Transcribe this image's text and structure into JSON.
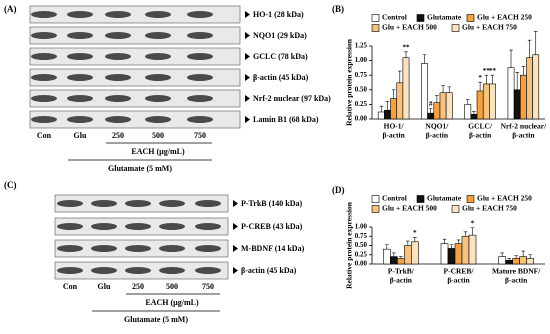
{
  "blots_a": {
    "label": "(A)",
    "rows": [
      "HO-1 (28 kDa)",
      "NQO1 (29 kDa)",
      "GCLC (78 kDa)",
      "β-actin (45 kDa)",
      "Nrf-2 nuclear (97 kDa)",
      "Lamin B1 (68 kDa)"
    ],
    "lanes": [
      "Con",
      "Glu",
      "250",
      "500",
      "750"
    ],
    "treatment": "EACH (µg/mL)",
    "base": "Glutamate (5 mM)"
  },
  "blots_c": {
    "label": "(C)",
    "rows": [
      "P-TrkB (140 kDa)",
      "P-CREB (43 kDa)",
      "M-BDNF (14 kDa)",
      "β-actin (45 kDa)"
    ],
    "lanes": [
      "Con",
      "Glu",
      "250",
      "500",
      "750"
    ],
    "treatment": "EACH (µg/mL)",
    "base": "Glutamate (5 mM)"
  },
  "chart_data": [
    {
      "type": "bar",
      "panel": "(B)",
      "y_label": "Relative protein expression",
      "categories": [
        [
          "HO-1/",
          "β-actin"
        ],
        [
          "NQO1/",
          "β-actin"
        ],
        [
          "GCLC/",
          "β-actin"
        ],
        [
          "Nrf-2 nuclear/",
          "β-actin"
        ]
      ],
      "ylim": [
        0,
        1.25
      ],
      "yticks": [
        {
          "value": 0,
          "label": "0.00"
        },
        {
          "value": 0.25,
          "label": "0.25"
        },
        {
          "value": 0.5,
          "label": "0.50"
        },
        {
          "value": 0.75,
          "label": "0.75"
        },
        {
          "value": 1,
          "label": "1.00"
        },
        {
          "value": 1.25,
          "label": "1.25"
        }
      ],
      "series": [
        {
          "name": "Control",
          "color": "#ffffff",
          "values": [
            0.12,
            0.95,
            0.25,
            0.88
          ],
          "errors": [
            0.1,
            0.15,
            0.08,
            0.3
          ],
          "significance": [
            null,
            null,
            null,
            null
          ]
        },
        {
          "name": "Glutamate",
          "color": "#111111",
          "values": [
            0.15,
            0.1,
            0.08,
            0.5
          ],
          "errors": [
            0.15,
            0.08,
            0.05,
            0.3
          ],
          "significance": [
            null,
            "#",
            null,
            null
          ]
        },
        {
          "name": "Glu + EACH 250",
          "color": "#f5a041",
          "values": [
            0.35,
            0.28,
            0.48,
            0.75
          ],
          "errors": [
            0.15,
            0.12,
            0.15,
            0.15
          ],
          "significance": [
            null,
            null,
            "*",
            null
          ]
        },
        {
          "name": "Glu + EACH 500",
          "color": "#f7c27f",
          "values": [
            0.62,
            0.45,
            0.6,
            1.05
          ],
          "errors": [
            0.2,
            0.12,
            0.15,
            0.3
          ],
          "significance": [
            null,
            null,
            "**",
            null
          ]
        },
        {
          "name": "Glu + EACH 750",
          "color": "#fbe3c0",
          "values": [
            1.05,
            0.45,
            0.6,
            1.1
          ],
          "errors": [
            0.1,
            0.1,
            0.15,
            0.4
          ],
          "significance": [
            "**",
            null,
            "**",
            null
          ]
        }
      ]
    },
    {
      "type": "bar",
      "panel": "(D)",
      "y_label": "Relative protein expression",
      "categories": [
        [
          "P-TrkB/",
          "β-actin"
        ],
        [
          "P-CREB/",
          "β-actin"
        ],
        [
          "Mature BDNF/",
          "β-actin"
        ]
      ],
      "ylim": [
        0,
        1
      ],
      "yticks": [
        {
          "value": 0,
          "label": "0.00"
        },
        {
          "value": 0.25,
          "label": "0.25"
        },
        {
          "value": 0.5,
          "label": "0.50"
        },
        {
          "value": 0.75,
          "label": "0.75"
        },
        {
          "value": 1,
          "label": "1.00"
        }
      ],
      "series": [
        {
          "name": "Control",
          "color": "#ffffff",
          "values": [
            0.4,
            0.55,
            0.2
          ],
          "errors": [
            0.12,
            0.12,
            0.1
          ],
          "significance": [
            null,
            null,
            null
          ]
        },
        {
          "name": "Glutamate",
          "color": "#111111",
          "values": [
            0.2,
            0.42,
            0.1
          ],
          "errors": [
            0.1,
            0.1,
            0.05
          ],
          "significance": [
            null,
            null,
            null
          ]
        },
        {
          "name": "Glu + EACH 250",
          "color": "#f5a041",
          "values": [
            0.15,
            0.55,
            0.15
          ],
          "errors": [
            0.05,
            0.1,
            0.08
          ],
          "significance": [
            null,
            null,
            null
          ]
        },
        {
          "name": "Glu + EACH 500",
          "color": "#f7c27f",
          "values": [
            0.5,
            0.75,
            0.2
          ],
          "errors": [
            0.12,
            0.12,
            0.15
          ],
          "significance": [
            null,
            null,
            null
          ]
        },
        {
          "name": "Glu + EACH 750",
          "color": "#fbe3c0",
          "values": [
            0.6,
            0.78,
            0.15
          ],
          "errors": [
            0.12,
            0.2,
            0.1
          ],
          "significance": [
            "*",
            "*",
            null
          ]
        }
      ]
    }
  ]
}
